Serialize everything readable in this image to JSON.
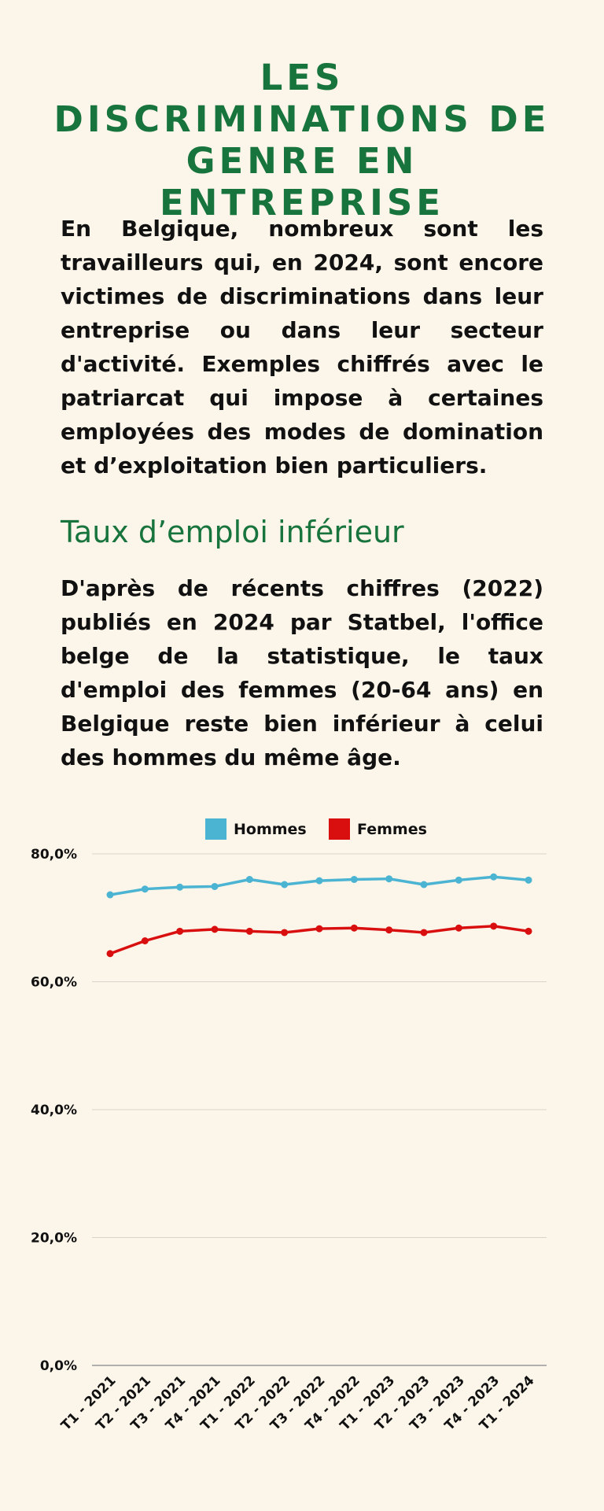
{
  "header": {
    "title": "LES DISCRIMINATIONS DE GENRE EN ENTREPRISE"
  },
  "intro": {
    "text": "En Belgique, nombreux sont les travailleurs qui, en 2024, sont encore victimes de discriminations dans leur entreprise ou dans leur secteur d'activité. Exemples chiffrés avec le patriarcat qui impose à certaines employées des modes de domination et d’exploitation bien particuliers."
  },
  "section": {
    "title": "Taux d’emploi inférieur",
    "text": "D'après de récents chiffres (2022) publiés en 2024 par Statbel, l'office belge de la statistique, le taux d'emploi des femmes (20-64 ans) en Belgique reste bien inférieur à celui des hommes du même âge."
  },
  "chart_data": {
    "type": "line",
    "title": "",
    "xlabel": "",
    "ylabel": "",
    "categories": [
      "T1 - 2021",
      "T2 - 2021",
      "T3 - 2021",
      "T4 - 2021",
      "T1 - 2022",
      "T2 - 2022",
      "T3 - 2022",
      "T4 - 2022",
      "T1 - 2023",
      "T2 - 2023",
      "T3 - 2023",
      "T4 - 2023",
      "T1 - 2024"
    ],
    "series": [
      {
        "name": "Hommes",
        "color": "#4bb4d2",
        "values": [
          73.6,
          74.5,
          74.8,
          74.9,
          76.0,
          75.2,
          75.8,
          76.0,
          76.1,
          75.2,
          75.9,
          76.4,
          75.9
        ]
      },
      {
        "name": "Femmes",
        "color": "#d90f0f",
        "values": [
          64.4,
          66.4,
          67.9,
          68.2,
          67.9,
          67.7,
          68.3,
          68.4,
          68.1,
          67.7,
          68.4,
          68.7,
          67.9
        ]
      }
    ],
    "ylim": [
      0,
      80
    ],
    "yticks": [
      0,
      20,
      40,
      60,
      80
    ],
    "ytick_labels": [
      "0,0%",
      "20,0%",
      "40,0%",
      "60,0%",
      "80,0%"
    ],
    "grid": true,
    "legend_position": "top-center"
  }
}
